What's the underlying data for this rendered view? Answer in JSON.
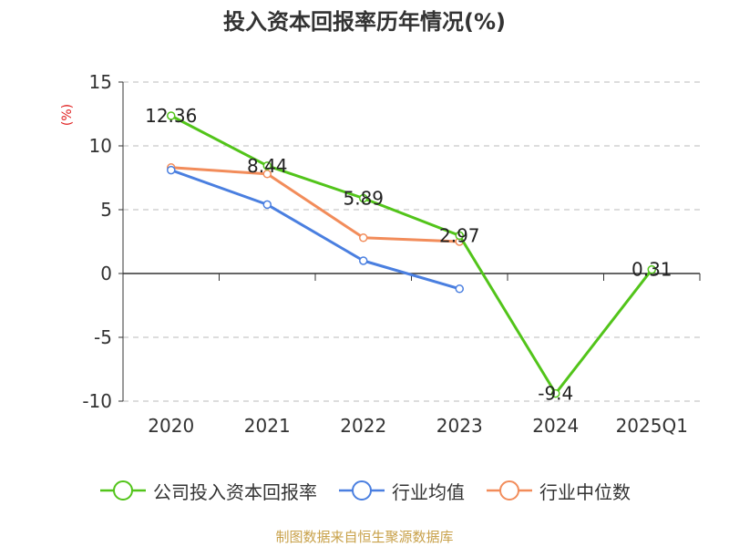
{
  "chart_data": {
    "type": "line",
    "title": "投入资本回报率历年情况(%)",
    "ylabel": "(%)",
    "ylim": [
      -10,
      15
    ],
    "yticks": [
      15,
      10,
      5,
      0,
      -5,
      -10
    ],
    "grid": true,
    "legend_position": "bottom",
    "categories": [
      "2020",
      "2021",
      "2022",
      "2023",
      "2024",
      "2025Q1"
    ],
    "series": [
      {
        "name": "公司投入资本回报率",
        "color": "#52c41a",
        "values": [
          12.36,
          8.44,
          5.89,
          2.97,
          -9.4,
          0.31
        ],
        "labels": [
          "12.36",
          "8.44",
          "5.89",
          "2.97",
          "-9.4",
          "0.31"
        ]
      },
      {
        "name": "行业均值",
        "color": "#4a7fe0",
        "values": [
          8.1,
          5.4,
          1.0,
          -1.2,
          null,
          null
        ]
      },
      {
        "name": "行业中位数",
        "color": "#f28c5a",
        "values": [
          8.3,
          7.8,
          2.8,
          2.5,
          null,
          null
        ]
      }
    ]
  },
  "footer": {
    "source": "制图数据来自恒生聚源数据库",
    "color": "#c8a14a"
  },
  "ylabel_color": "#e02020"
}
